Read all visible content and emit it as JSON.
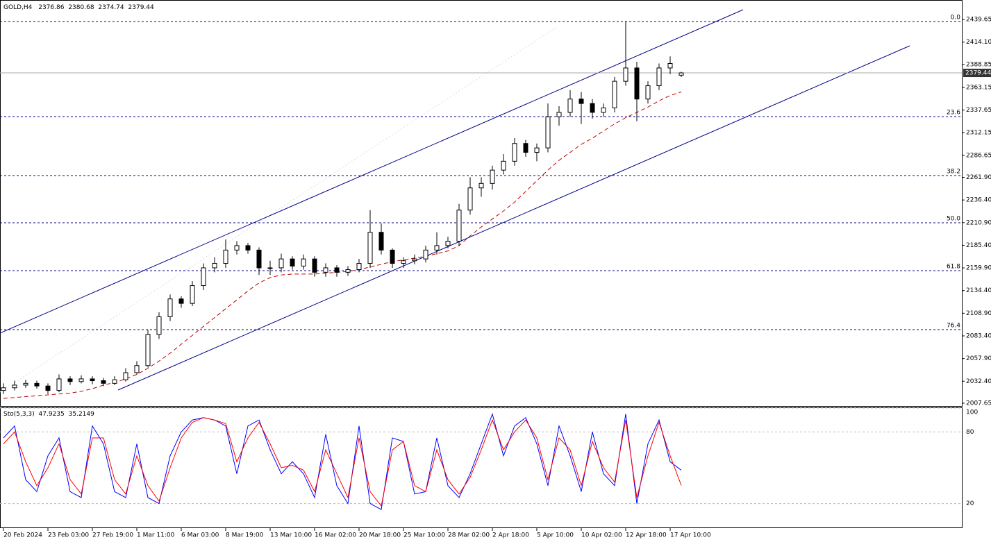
{
  "chart_data": {
    "type": "candlestick",
    "symbol": "GOLD,H4",
    "categories": [
      "20 Feb 2024",
      null,
      null,
      null,
      "23 Feb 03:00",
      null,
      null,
      null,
      "27 Feb 19:00",
      null,
      null,
      null,
      "1 Mar 11:00",
      null,
      null,
      null,
      "6 Mar 03:00",
      null,
      null,
      null,
      "8 Mar 19:00",
      null,
      null,
      null,
      "13 Mar 10:00",
      null,
      null,
      null,
      "16 Mar 02:00",
      null,
      null,
      null,
      "20 Mar 18:00",
      null,
      null,
      null,
      "25 Mar 10:00",
      null,
      null,
      null,
      "28 Mar 02:00",
      null,
      null,
      null,
      "2 Apr 18:00",
      null,
      null,
      null,
      "5 Apr 10:00",
      null,
      null,
      null,
      "10 Apr 02:00",
      null,
      null,
      null,
      "12 Apr 18:00",
      null,
      null,
      null,
      "17 Apr 10:00",
      null
    ],
    "open": [
      2022,
      2025,
      2028,
      2030,
      2027,
      2022,
      2035,
      2032,
      2035,
      2033,
      2030,
      2034,
      2042,
      2050,
      2085,
      2105,
      2125,
      2120,
      2140,
      2160,
      2165,
      2180,
      2185,
      2180,
      2160,
      2160,
      2170,
      2162,
      2170,
      2155,
      2160,
      2155,
      2158,
      2165,
      2200,
      2180,
      2165,
      2168,
      2170,
      2180,
      2185,
      2190,
      2225,
      2250,
      2255,
      2270,
      2280,
      2300,
      2290,
      2295,
      2330,
      2335,
      2350,
      2345,
      2335,
      2340,
      2370,
      2385,
      2350,
      2365,
      2385,
      2376.86
    ],
    "high": [
      2030,
      2033,
      2034,
      2033,
      2030,
      2040,
      2038,
      2039,
      2038,
      2036,
      2038,
      2047,
      2055,
      2090,
      2110,
      2130,
      2128,
      2145,
      2165,
      2172,
      2192,
      2190,
      2188,
      2183,
      2168,
      2176,
      2173,
      2175,
      2173,
      2165,
      2163,
      2162,
      2170,
      2225,
      2210,
      2182,
      2172,
      2175,
      2185,
      2200,
      2195,
      2232,
      2262,
      2262,
      2275,
      2288,
      2306,
      2304,
      2300,
      2345,
      2342,
      2360,
      2358,
      2350,
      2345,
      2375,
      2437,
      2392,
      2370,
      2390,
      2398,
      2380.68
    ],
    "low": [
      2018,
      2022,
      2025,
      2024,
      2018,
      2020,
      2028,
      2030,
      2029,
      2027,
      2028,
      2032,
      2040,
      2048,
      2080,
      2100,
      2115,
      2117,
      2135,
      2155,
      2160,
      2175,
      2176,
      2152,
      2152,
      2155,
      2158,
      2158,
      2150,
      2150,
      2150,
      2151,
      2155,
      2160,
      2175,
      2160,
      2160,
      2164,
      2166,
      2175,
      2182,
      2185,
      2220,
      2240,
      2248,
      2265,
      2275,
      2285,
      2280,
      2290,
      2320,
      2330,
      2322,
      2328,
      2330,
      2335,
      2365,
      2325,
      2345,
      2360,
      2378,
      2374.74
    ],
    "close": [
      2025,
      2028,
      2030,
      2027,
      2022,
      2035,
      2032,
      2035,
      2033,
      2030,
      2034,
      2042,
      2050,
      2085,
      2105,
      2125,
      2120,
      2140,
      2160,
      2165,
      2180,
      2185,
      2180,
      2160,
      2160,
      2170,
      2162,
      2170,
      2155,
      2160,
      2155,
      2158,
      2165,
      2200,
      2180,
      2165,
      2168,
      2170,
      2180,
      2185,
      2190,
      2225,
      2250,
      2255,
      2270,
      2280,
      2300,
      2290,
      2295,
      2330,
      2335,
      2350,
      2345,
      2335,
      2340,
      2370,
      2385,
      2350,
      2365,
      2385,
      2390,
      2379.44
    ],
    "up_color": "#ffffff",
    "down_color": "#000000",
    "ma": {
      "color": "#c00000",
      "values": [
        2013,
        2014,
        2015,
        2016,
        2017,
        2018,
        2019,
        2021,
        2024,
        2028,
        2031,
        2035,
        2040,
        2047,
        2055,
        2064,
        2074,
        2084,
        2094,
        2104,
        2114,
        2124,
        2134,
        2143,
        2149,
        2152,
        2153,
        2153,
        2153,
        2154,
        2155,
        2156,
        2158,
        2161,
        2164,
        2167,
        2169,
        2171,
        2173,
        2176,
        2179,
        2185,
        2196,
        2206,
        2215,
        2224,
        2234,
        2246,
        2258,
        2270,
        2281,
        2290,
        2299,
        2306,
        2314,
        2322,
        2329,
        2335,
        2341,
        2348,
        2354,
        2358
      ]
    },
    "ylim": [
      2004.5,
      2461.5
    ],
    "yticks": [
      2439.65,
      {
        "value": 2414.1,
        "label": "2414.10"
      },
      2388.85,
      2363.15,
      2337.65,
      2312.15,
      2286.65,
      {
        "value": 2261.9,
        "label": "2261.90"
      },
      {
        "value": 2236.4,
        "label": "2236.40"
      },
      {
        "value": 2210.9,
        "label": "2210.90"
      },
      {
        "value": 2185.4,
        "label": "2185.40"
      },
      {
        "value": 2159.9,
        "label": "2159.90"
      },
      {
        "value": 2134.4,
        "label": "2134.40"
      },
      {
        "value": 2108.9,
        "label": "2108.90"
      },
      {
        "value": 2083.4,
        "label": "2083.40"
      },
      {
        "value": 2057.9,
        "label": "2057.90"
      },
      {
        "value": 2032.4,
        "label": "2032.40"
      },
      2007.65
    ],
    "fib_color": "#00008b",
    "fib_levels": [
      {
        "label": "0.0",
        "value": 2437.3
      },
      {
        "label": "23.6",
        "value": 2330.3
      },
      {
        "label": "38.2",
        "value": 2263.9
      },
      {
        "label": "50.0",
        "value": 2210.7
      },
      {
        "label": "61.8",
        "value": 2156.8
      },
      {
        "label": "76.4",
        "value": 2090.4
      }
    ],
    "stochastic": {
      "title": "Sto(5,3,3)",
      "ylim": [
        0,
        100
      ],
      "yticks": [
        100,
        80,
        20
      ],
      "series": [
        {
          "color": "#0000ff",
          "values": [
            75,
            85,
            40,
            30,
            60,
            75,
            30,
            25,
            85,
            70,
            30,
            25,
            70,
            25,
            20,
            60,
            80,
            90,
            92,
            90,
            85,
            45,
            85,
            90,
            65,
            45,
            55,
            45,
            25,
            78,
            35,
            20,
            85,
            20,
            15,
            75,
            72,
            28,
            30,
            75,
            35,
            25,
            45,
            70,
            95,
            60,
            85,
            92,
            70,
            35,
            85,
            60,
            30,
            80,
            45,
            35,
            95,
            20,
            70,
            90,
            55,
            47.9235
          ]
        },
        {
          "color": "#ff0000",
          "values": [
            70,
            80,
            55,
            35,
            50,
            70,
            40,
            28,
            75,
            75,
            40,
            28,
            60,
            35,
            22,
            50,
            75,
            88,
            92,
            90,
            87,
            55,
            75,
            88,
            70,
            50,
            52,
            48,
            30,
            65,
            45,
            25,
            75,
            30,
            18,
            65,
            72,
            35,
            30,
            65,
            40,
            28,
            42,
            65,
            90,
            65,
            80,
            90,
            75,
            40,
            75,
            65,
            35,
            72,
            50,
            38,
            90,
            25,
            60,
            88,
            60,
            35.2149
          ]
        }
      ]
    }
  }
}
